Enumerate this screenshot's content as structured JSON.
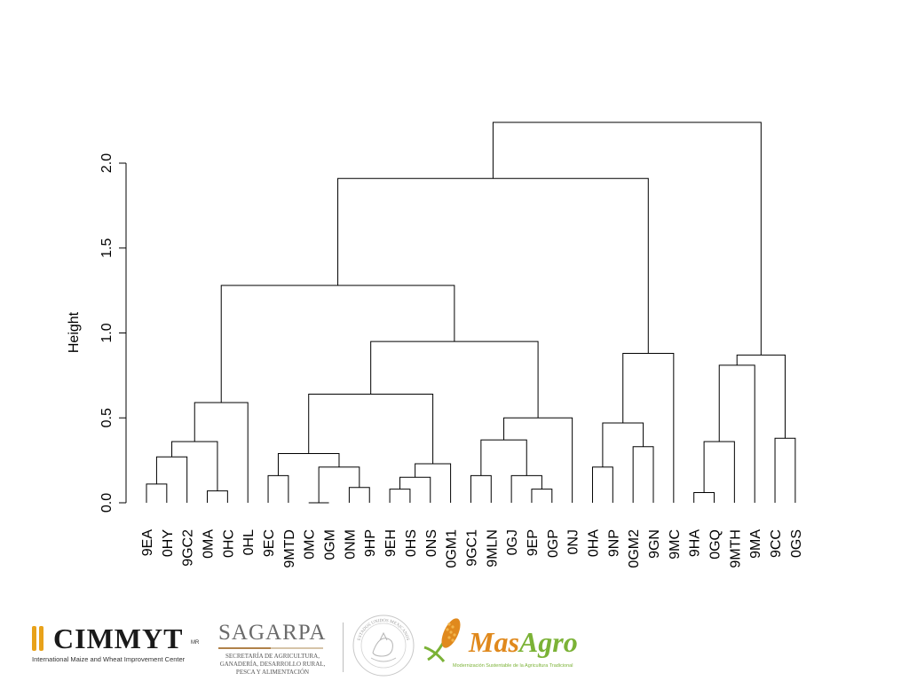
{
  "chart_data": {
    "type": "dendrogram",
    "ylabel": "Height",
    "ylim": [
      0,
      2.0
    ],
    "yticks": [
      0.0,
      0.5,
      1.0,
      1.5,
      2.0
    ],
    "ytick_labels": [
      "0.0",
      "0.5",
      "1.0",
      "1.5",
      "2.0"
    ],
    "leaves": [
      "9EA",
      "0HY",
      "9GC2",
      "0MA",
      "0HC",
      "0HL",
      "9EC",
      "9MTD",
      "0MC",
      "0GM",
      "0NM",
      "9HP",
      "9EH",
      "0HS",
      "0NS",
      "0GM1",
      "9GC1",
      "9MLN",
      "0GJ",
      "9EP",
      "0GP",
      "0NJ",
      "0HA",
      "9NP",
      "0GM2",
      "9GN",
      "9MC",
      "9HA",
      "0GQ",
      "9MTH",
      "9MA",
      "9CC",
      "0GS"
    ],
    "merges": [
      {
        "left": "9EA",
        "right": "0HY",
        "height": 0.11
      },
      {
        "left": "0MA",
        "right": "0HC",
        "height": 0.07
      },
      {
        "left": 0,
        "right": "9GC2",
        "height": 0.27
      },
      {
        "left": 2,
        "right": 1,
        "height": 0.36
      },
      {
        "left": 3,
        "right": "0HL",
        "height": 0.59
      },
      {
        "left": "9EC",
        "right": "9MTD",
        "height": 0.16
      },
      {
        "left": "0MC",
        "right": "0GM",
        "height": 0.0
      },
      {
        "left": "0NM",
        "right": "9HP",
        "height": 0.09
      },
      {
        "left": 6,
        "right": 7,
        "height": 0.21
      },
      {
        "left": 5,
        "right": 8,
        "height": 0.29
      },
      {
        "left": "9EH",
        "right": "0HS",
        "height": 0.08
      },
      {
        "left": 10,
        "right": "0NS",
        "height": 0.15
      },
      {
        "left": 11,
        "right": "0GM1",
        "height": 0.23
      },
      {
        "left": 9,
        "right": 12,
        "height": 0.64
      },
      {
        "left": "9GC1",
        "right": "9MLN",
        "height": 0.16
      },
      {
        "left": "9EP",
        "right": "0GP",
        "height": 0.08
      },
      {
        "left": "0GJ",
        "right": 15,
        "height": 0.16
      },
      {
        "left": 14,
        "right": 16,
        "height": 0.37
      },
      {
        "left": 17,
        "right": "0NJ",
        "height": 0.5
      },
      {
        "left": 13,
        "right": 18,
        "height": 0.95
      },
      {
        "left": 4,
        "right": 19,
        "height": 1.28
      },
      {
        "left": "0HA",
        "right": "9NP",
        "height": 0.21
      },
      {
        "left": "0GM2",
        "right": "9GN",
        "height": 0.33
      },
      {
        "left": 21,
        "right": 22,
        "height": 0.47
      },
      {
        "left": 23,
        "right": "9MC",
        "height": 0.88
      },
      {
        "left": 20,
        "right": 24,
        "height": 1.91
      },
      {
        "left": "9HA",
        "right": "0GQ",
        "height": 0.06
      },
      {
        "left": 26,
        "right": "9MTH",
        "height": 0.36
      },
      {
        "left": 27,
        "right": "9MA",
        "height": 0.81
      },
      {
        "left": "9CC",
        "right": "0GS",
        "height": 0.38
      },
      {
        "left": 28,
        "right": 29,
        "height": 0.87
      },
      {
        "left": 25,
        "right": 30,
        "height": 2.24
      }
    ]
  },
  "logos": {
    "cimmyt": {
      "name": "CIMMYT",
      "mark": "MR",
      "subtitle": "International Maize and Wheat Improvement Center",
      "bar_color": "#e8a21a"
    },
    "sagarpa": {
      "name": "SAGARPA",
      "line1": "SECRETARÍA DE AGRICULTURA,",
      "line2": "GANADERÍA, DESARROLLO RURAL,",
      "line3": "PESCA Y ALIMENTACIÓN"
    },
    "seal": {
      "text": "ESTADOS UNIDOS MEXICANOS",
      "icon": "mexico-coat-of-arms-seal"
    },
    "masagro": {
      "name_part1": "Mas",
      "name_part2": "Agro",
      "tagline": "Modernización Sustentable de la Agricultura Tradicional",
      "color_orange": "#e0891d",
      "color_green": "#7bb236"
    }
  }
}
